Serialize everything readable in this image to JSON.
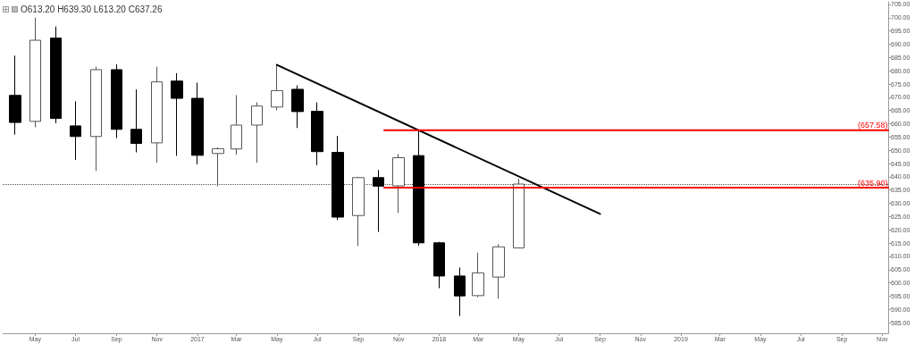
{
  "chart_data": {
    "type": "candlestick",
    "annotations": [
      "O613.20 H639.30 L613.20 C637.26"
    ],
    "x": [
      "2016-04",
      "2016-05",
      "2016-06",
      "2016-07",
      "2016-08",
      "2016-09",
      "2016-10",
      "2016-11",
      "2016-12",
      "2017-01",
      "2017-02",
      "2017-03",
      "2017-04",
      "2017-05",
      "2017-06",
      "2017-07",
      "2017-08",
      "2017-09",
      "2017-10",
      "2017-11",
      "2017-12",
      "2018-01",
      "2018-02",
      "2018-03",
      "2018-04",
      "2018-05"
    ],
    "ohlc": [
      [
        670.7,
        685.7,
        655.9,
        660.5
      ],
      [
        660.9,
        700.0,
        658.7,
        691.5
      ],
      [
        692.3,
        696.7,
        660.2,
        662.0
      ],
      [
        659.2,
        668.5,
        646.4,
        655.2
      ],
      [
        655.2,
        681.5,
        642.2,
        680.4
      ],
      [
        680.4,
        682.4,
        654.6,
        657.9
      ],
      [
        657.9,
        673.0,
        649.2,
        652.6
      ],
      [
        652.8,
        681.5,
        645.3,
        675.8
      ],
      [
        676.1,
        679.1,
        647.9,
        669.6
      ],
      [
        669.6,
        675.5,
        644.7,
        648.1
      ],
      [
        648.8,
        651.1,
        636.4,
        650.6
      ],
      [
        650.5,
        670.8,
        648.4,
        659.5
      ],
      [
        659.5,
        668.1,
        645.3,
        666.7
      ],
      [
        666.3,
        682.5,
        665.1,
        672.5
      ],
      [
        673.0,
        674.5,
        658.4,
        664.6
      ],
      [
        664.7,
        668.1,
        644.4,
        649.5
      ],
      [
        649.2,
        655.4,
        623.7,
        624.8
      ],
      [
        625.4,
        640.0,
        613.9,
        639.7
      ],
      [
        639.7,
        642.6,
        619.2,
        636.5
      ],
      [
        636.6,
        648.6,
        626.4,
        647.2
      ],
      [
        648.0,
        657.8,
        614.0,
        615.1
      ],
      [
        615.1,
        615.5,
        598.0,
        602.6
      ],
      [
        602.6,
        605.8,
        587.5,
        595.1
      ],
      [
        595.2,
        611.4,
        594.6,
        603.8
      ],
      [
        602.2,
        614.6,
        594.1,
        613.6
      ],
      [
        613.2,
        639.3,
        613.2,
        637.26
      ]
    ],
    "series": [
      {
        "type": "line",
        "color": "#000000",
        "x": [
          "2017-05",
          "2018-09"
        ],
        "values": [
          682.2,
          626.0
        ]
      },
      {
        "type": "line",
        "color": "#ff0000",
        "x": [
          "2017-10-10",
          "2019-11-10"
        ],
        "values": [
          657.58,
          657.58
        ],
        "value_labels": [
          null,
          "(657.58)"
        ]
      },
      {
        "type": "line",
        "color": "#ff0000",
        "x": [
          "2017-10-10",
          "2019-11-10"
        ],
        "values": [
          635.9,
          635.9
        ],
        "value_labels": [
          null,
          "(635.90)"
        ]
      }
    ],
    "ref_lines": [
      {
        "axis": "y",
        "value": 637.26,
        "color": "#555555",
        "line_style": "dotted"
      }
    ],
    "xlim": [
      "2016-03-13",
      "2019-11-10"
    ],
    "xticks": [
      {
        "value": "2016-05",
        "label": "May"
      },
      {
        "value": "2016-07",
        "label": "Jul"
      },
      {
        "value": "2016-09",
        "label": "Sep"
      },
      {
        "value": "2016-11",
        "label": "Nov"
      },
      {
        "value": "2017-01",
        "label": "2017"
      },
      {
        "value": "2017-03",
        "label": "Mar"
      },
      {
        "value": "2017-05",
        "label": "May"
      },
      {
        "value": "2017-07",
        "label": "Jul"
      },
      {
        "value": "2017-09",
        "label": "Sep"
      },
      {
        "value": "2017-11",
        "label": "Nov"
      },
      {
        "value": "2018-01",
        "label": "2018"
      },
      {
        "value": "2018-03",
        "label": "Mar"
      },
      {
        "value": "2018-05",
        "label": "May"
      },
      {
        "value": "2018-07",
        "label": "Jul"
      },
      {
        "value": "2018-09",
        "label": "Sep"
      },
      {
        "value": "2018-11",
        "label": "Nov"
      },
      {
        "value": "2019-01",
        "label": "2019"
      },
      {
        "value": "2019-03",
        "label": "Mar"
      },
      {
        "value": "2019-05",
        "label": "May"
      },
      {
        "value": "2019-07",
        "label": "Jul"
      },
      {
        "value": "2019-09",
        "label": "Sep"
      },
      {
        "value": "2019-11",
        "label": "Nov"
      }
    ],
    "ylim": [
      581,
      706
    ],
    "yticks": [
      {
        "value": 585,
        "label": "585.00"
      },
      {
        "value": 590,
        "label": "590.00"
      },
      {
        "value": 595,
        "label": "595.00"
      },
      {
        "value": 600,
        "label": "600.00"
      },
      {
        "value": 605,
        "label": "605.00"
      },
      {
        "value": 610,
        "label": "610.00"
      },
      {
        "value": 615,
        "label": "615.00"
      },
      {
        "value": 620,
        "label": "620.00"
      },
      {
        "value": 625,
        "label": "625.00"
      },
      {
        "value": 630,
        "label": "630.00"
      },
      {
        "value": 635,
        "label": "635.00"
      },
      {
        "value": 640,
        "label": "640.00"
      },
      {
        "value": 645,
        "label": "645.00"
      },
      {
        "value": 650,
        "label": "650.00"
      },
      {
        "value": 655,
        "label": "655.00"
      },
      {
        "value": 660,
        "label": "660.00"
      },
      {
        "value": 665,
        "label": "665.00"
      },
      {
        "value": 670,
        "label": "670.00"
      },
      {
        "value": 675,
        "label": "675.00"
      },
      {
        "value": 680,
        "label": "680.00"
      },
      {
        "value": 685,
        "label": "685.00"
      },
      {
        "value": 690,
        "label": "690.00"
      },
      {
        "value": 695,
        "label": "695.00"
      },
      {
        "value": 700,
        "label": "700.00"
      },
      {
        "value": 705,
        "label": "705.00"
      }
    ],
    "grid": false
  }
}
